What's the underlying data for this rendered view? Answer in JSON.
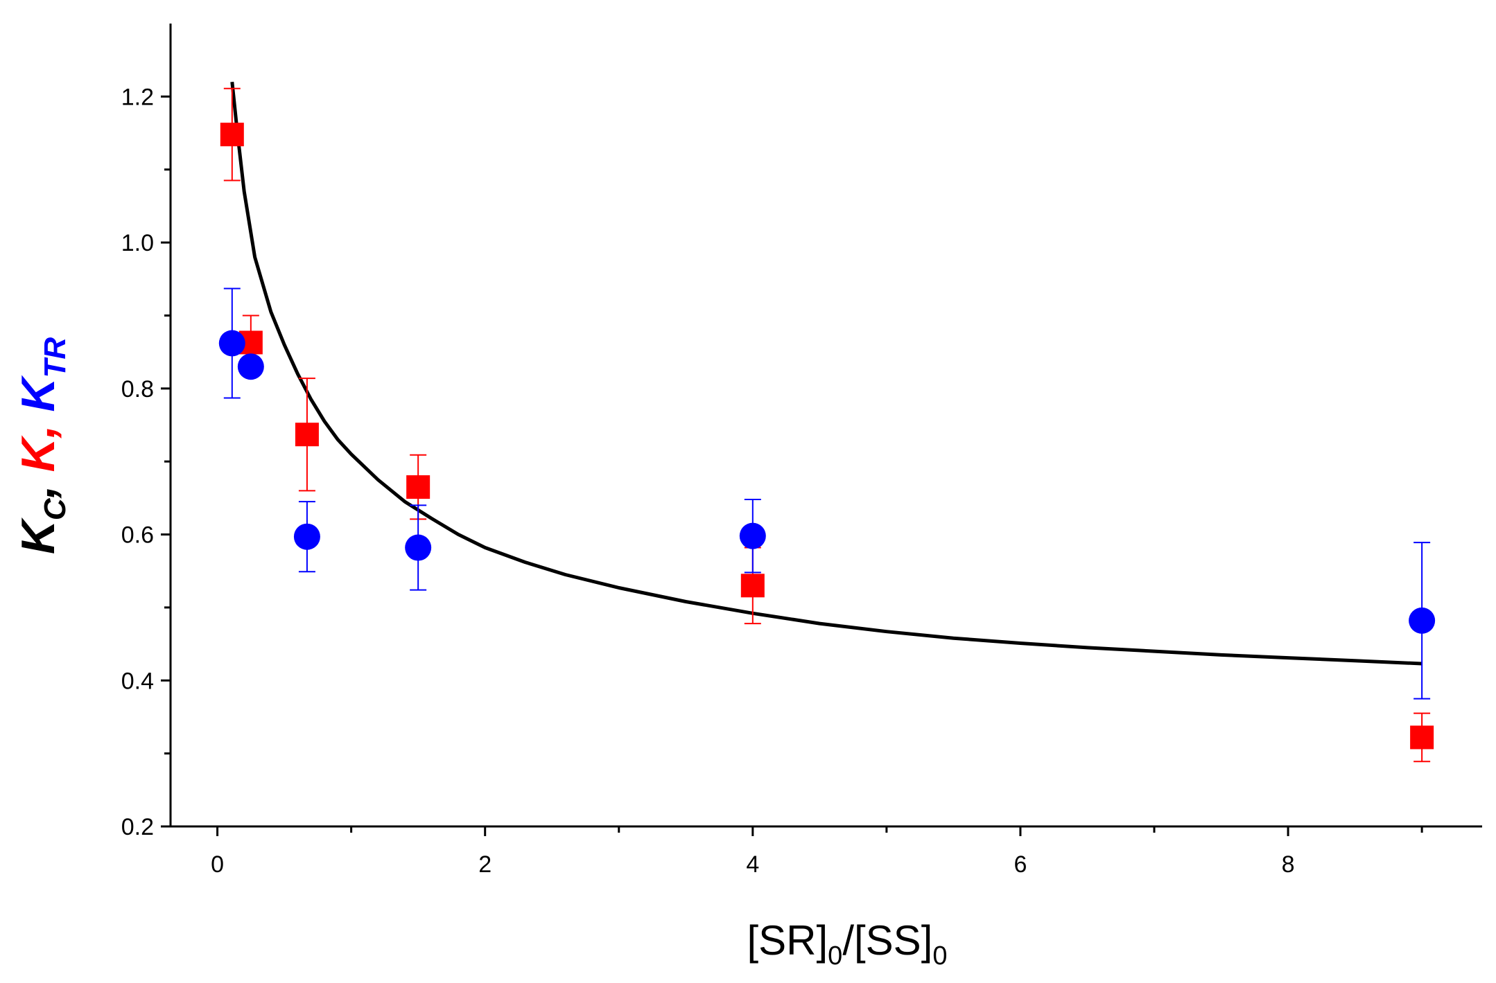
{
  "chart_data": {
    "type": "scatter",
    "title": "",
    "xlabel": {
      "parts": [
        {
          "text": "[SR]",
          "sub": false
        },
        {
          "text": "0",
          "sub": true
        },
        {
          "text": "/[SS]",
          "sub": false
        },
        {
          "text": "0",
          "sub": true
        }
      ]
    },
    "ylabel": {
      "parts": [
        {
          "text": "K",
          "color": "#000000",
          "sub": false
        },
        {
          "text": "C",
          "color": "#000000",
          "sub": true
        },
        {
          "text": ", ",
          "color": "#000000",
          "sub": false
        },
        {
          "text": "K",
          "color": "#ff0000",
          "sub": false
        },
        {
          "text": ", ",
          "color": "#ff0000",
          "sub": false
        },
        {
          "text": "K",
          "color": "#0000ff",
          "sub": false
        },
        {
          "text": "TR",
          "color": "#0000ff",
          "sub": true
        }
      ]
    },
    "xlim": [
      -0.35,
      9.45
    ],
    "ylim": [
      0.2,
      1.3
    ],
    "x_ticks": [
      0,
      2,
      4,
      6,
      8
    ],
    "x_tick_labels": [
      "0",
      "2",
      "4",
      "6",
      "8"
    ],
    "x_minor_ticks": [
      1,
      3,
      5,
      7,
      9
    ],
    "y_ticks": [
      0.2,
      0.4,
      0.6,
      0.8,
      1.0,
      1.2
    ],
    "y_tick_labels": [
      "0.2",
      "0.4",
      "0.6",
      "0.8",
      "1.0",
      "1.2"
    ],
    "y_minor_ticks": [
      0.3,
      0.5,
      0.7,
      0.9,
      1.1
    ],
    "series": [
      {
        "name": "K",
        "marker": "square",
        "color": "#ff0000",
        "points": [
          {
            "x": 0.11,
            "y": 1.148,
            "err": 0.063
          },
          {
            "x": 0.25,
            "y": 0.863,
            "err": 0.037
          },
          {
            "x": 0.67,
            "y": 0.737,
            "err": 0.077
          },
          {
            "x": 1.5,
            "y": 0.665,
            "err": 0.044
          },
          {
            "x": 4.0,
            "y": 0.53,
            "err": 0.052
          },
          {
            "x": 9.0,
            "y": 0.322,
            "err": 0.033
          }
        ]
      },
      {
        "name": "K_TR",
        "marker": "circle",
        "color": "#0000ff",
        "points": [
          {
            "x": 0.11,
            "y": 0.862,
            "err": 0.075
          },
          {
            "x": 0.25,
            "y": 0.83,
            "err": null
          },
          {
            "x": 0.67,
            "y": 0.597,
            "err": 0.048
          },
          {
            "x": 1.5,
            "y": 0.582,
            "err": 0.058
          },
          {
            "x": 4.0,
            "y": 0.598,
            "err": 0.05
          },
          {
            "x": 9.0,
            "y": 0.482,
            "err": 0.107
          }
        ]
      },
      {
        "name": "K_C",
        "type": "line",
        "color": "#000000",
        "x": [
          0.11,
          0.15,
          0.2,
          0.28,
          0.4,
          0.5,
          0.6,
          0.7,
          0.8,
          0.9,
          1.0,
          1.2,
          1.4,
          1.6,
          1.8,
          2.0,
          2.3,
          2.6,
          3.0,
          3.5,
          4.0,
          4.5,
          5.0,
          5.5,
          6.0,
          6.5,
          7.0,
          7.5,
          8.0,
          8.5,
          9.0
        ],
        "y": [
          1.22,
          1.15,
          1.07,
          0.98,
          0.905,
          0.86,
          0.82,
          0.785,
          0.755,
          0.73,
          0.71,
          0.675,
          0.645,
          0.622,
          0.6,
          0.582,
          0.562,
          0.545,
          0.527,
          0.508,
          0.492,
          0.478,
          0.467,
          0.458,
          0.451,
          0.445,
          0.44,
          0.435,
          0.431,
          0.427,
          0.423
        ]
      }
    ]
  }
}
